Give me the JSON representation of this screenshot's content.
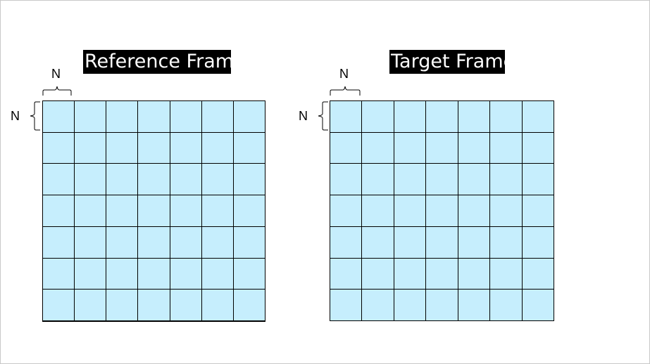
{
  "reference_frame": {
    "title": "Reference Frame",
    "block_width_label": "N",
    "block_height_label": "N",
    "rows": 7,
    "cols": 7
  },
  "target_frame": {
    "title": "Target Frame",
    "block_width_label": "N",
    "block_height_label": "N",
    "rows": 7,
    "cols": 7
  },
  "colors": {
    "cell_fill": "#c6eefd",
    "grid_line": "#000000",
    "title_background": "#000000",
    "title_text": "#ffffff"
  }
}
